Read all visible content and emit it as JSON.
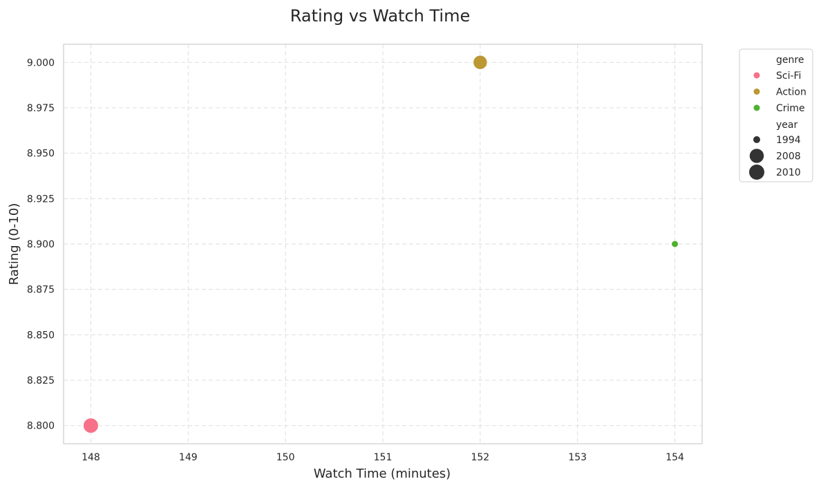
{
  "chart_data": {
    "type": "scatter",
    "title": "Rating vs Watch Time",
    "xlabel": "Watch Time (minutes)",
    "ylabel": "Rating (0-10)",
    "xlim": [
      147.72,
      154.28
    ],
    "ylim": [
      8.79,
      9.01
    ],
    "x_ticks": [
      148,
      149,
      150,
      151,
      152,
      153,
      154
    ],
    "y_ticks": [
      8.8,
      8.825,
      8.85,
      8.875,
      8.9,
      8.925,
      8.95,
      8.975,
      9.0
    ],
    "x_tick_labels": [
      "148",
      "149",
      "150",
      "151",
      "152",
      "153",
      "154"
    ],
    "y_tick_labels": [
      "8.800",
      "8.825",
      "8.850",
      "8.875",
      "8.900",
      "8.925",
      "8.950",
      "8.975",
      "9.000"
    ],
    "grid": true,
    "legend_position": "outside-top-right",
    "points": [
      {
        "x": 148,
        "y": 8.8,
        "genre": "Sci-Fi",
        "year": 2010
      },
      {
        "x": 152,
        "y": 9.0,
        "genre": "Action",
        "year": 2008
      },
      {
        "x": 154,
        "y": 8.9,
        "genre": "Crime",
        "year": 1994
      }
    ],
    "legend": {
      "hue_title": "genre",
      "hue_entries": [
        {
          "label": "Sci-Fi",
          "color": "#f77189"
        },
        {
          "label": "Action",
          "color": "#bb9832"
        },
        {
          "label": "Crime",
          "color": "#50b131"
        }
      ],
      "size_title": "year",
      "size_entries": [
        {
          "label": "1994",
          "value": 1994
        },
        {
          "label": "2008",
          "value": 2008
        },
        {
          "label": "2010",
          "value": 2010
        }
      ],
      "size_color": "#333333"
    }
  }
}
